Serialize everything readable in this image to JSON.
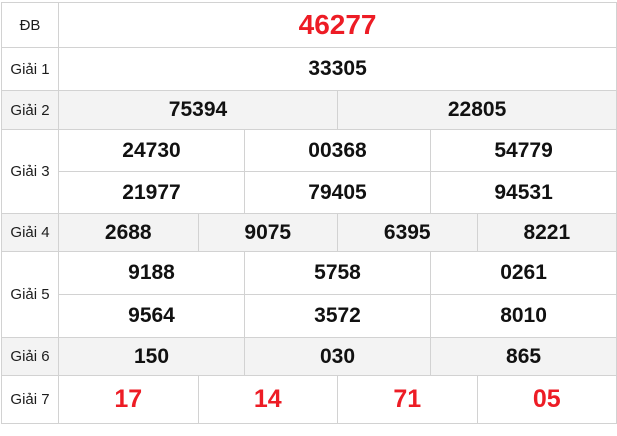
{
  "colors": {
    "accent_red": "#ed1c25",
    "number_black": "#111111",
    "alt_row_bg": "#f3f3f3",
    "border": "#d2d2d2"
  },
  "table": {
    "rows": [
      {
        "key": "special-prize",
        "label": "ĐB",
        "variant": "special",
        "alt": false,
        "height_class": "h-special",
        "lines": [
          [
            "46277"
          ]
        ]
      },
      {
        "key": "prize-1",
        "label": "Giải 1",
        "variant": "normal",
        "alt": false,
        "height_class": "h-g1",
        "lines": [
          [
            "33305"
          ]
        ]
      },
      {
        "key": "prize-2",
        "label": "Giải 2",
        "variant": "normal",
        "alt": true,
        "height_class": "h-g2",
        "lines": [
          [
            "75394",
            "22805"
          ]
        ]
      },
      {
        "key": "prize-3",
        "label": "Giải 3",
        "variant": "normal",
        "alt": false,
        "height_class": "h-g3",
        "lines": [
          [
            "24730",
            "00368",
            "54779"
          ],
          [
            "21977",
            "79405",
            "94531"
          ]
        ]
      },
      {
        "key": "prize-4",
        "label": "Giải 4",
        "variant": "normal",
        "alt": true,
        "height_class": "h-g4",
        "lines": [
          [
            "2688",
            "9075",
            "6395",
            "8221"
          ]
        ]
      },
      {
        "key": "prize-5",
        "label": "Giải 5",
        "variant": "normal",
        "alt": false,
        "height_class": "h-g5",
        "lines": [
          [
            "9188",
            "5758",
            "0261"
          ],
          [
            "9564",
            "3572",
            "8010"
          ]
        ]
      },
      {
        "key": "prize-6",
        "label": "Giải 6",
        "variant": "normal",
        "alt": true,
        "height_class": "h-g6",
        "lines": [
          [
            "150",
            "030",
            "865"
          ]
        ]
      },
      {
        "key": "prize-7",
        "label": "Giải 7",
        "variant": "red-large",
        "alt": false,
        "height_class": "h-g7",
        "lines": [
          [
            "17",
            "14",
            "71",
            "05"
          ]
        ]
      }
    ]
  }
}
